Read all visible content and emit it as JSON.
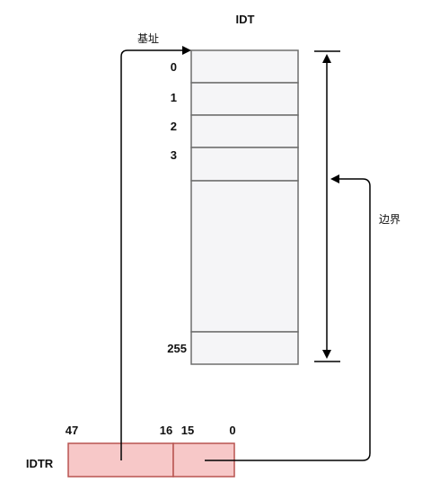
{
  "diagram": {
    "idt_title": "IDT",
    "idtr_label": "IDTR",
    "entries": [
      {
        "index": "0"
      },
      {
        "index": "1"
      },
      {
        "index": "2"
      },
      {
        "index": "3"
      },
      {
        "index": "255"
      }
    ],
    "idtr_bits": {
      "high_start": "47",
      "high_end": "16",
      "low_start": "15",
      "low_end": "0"
    },
    "base_label": "基址",
    "limit_label": "边界",
    "colors": {
      "table_fill": "#f5f5f7",
      "table_stroke": "#6e6e6e",
      "register_fill": "#f7c8c8",
      "register_stroke": "#b85450",
      "line": "#000000"
    }
  }
}
